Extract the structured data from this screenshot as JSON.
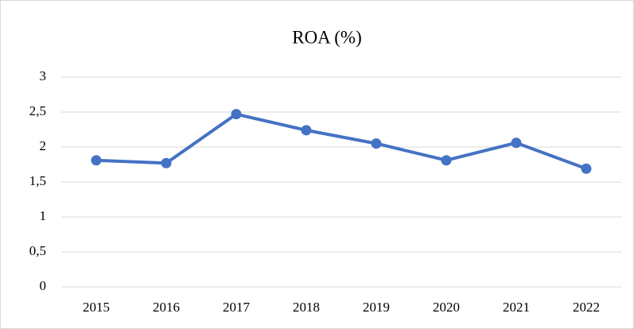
{
  "chart_data": {
    "type": "line",
    "title": "ROA (%)",
    "categories": [
      "2015",
      "2016",
      "2017",
      "2018",
      "2019",
      "2020",
      "2021",
      "2022"
    ],
    "series": [
      {
        "name": "ROA (%)",
        "color": "#4472c4",
        "values": [
          1.81,
          1.77,
          2.47,
          2.24,
          2.05,
          1.81,
          2.06,
          1.69
        ]
      }
    ],
    "ylim": [
      0,
      3
    ],
    "yticks": [
      0,
      {
        "value": 0.5,
        "label": "0,5"
      },
      1,
      {
        "value": 1.5,
        "label": "1,5"
      },
      2,
      {
        "value": 2.5,
        "label": "2,5"
      },
      3
    ],
    "grid": true
  }
}
